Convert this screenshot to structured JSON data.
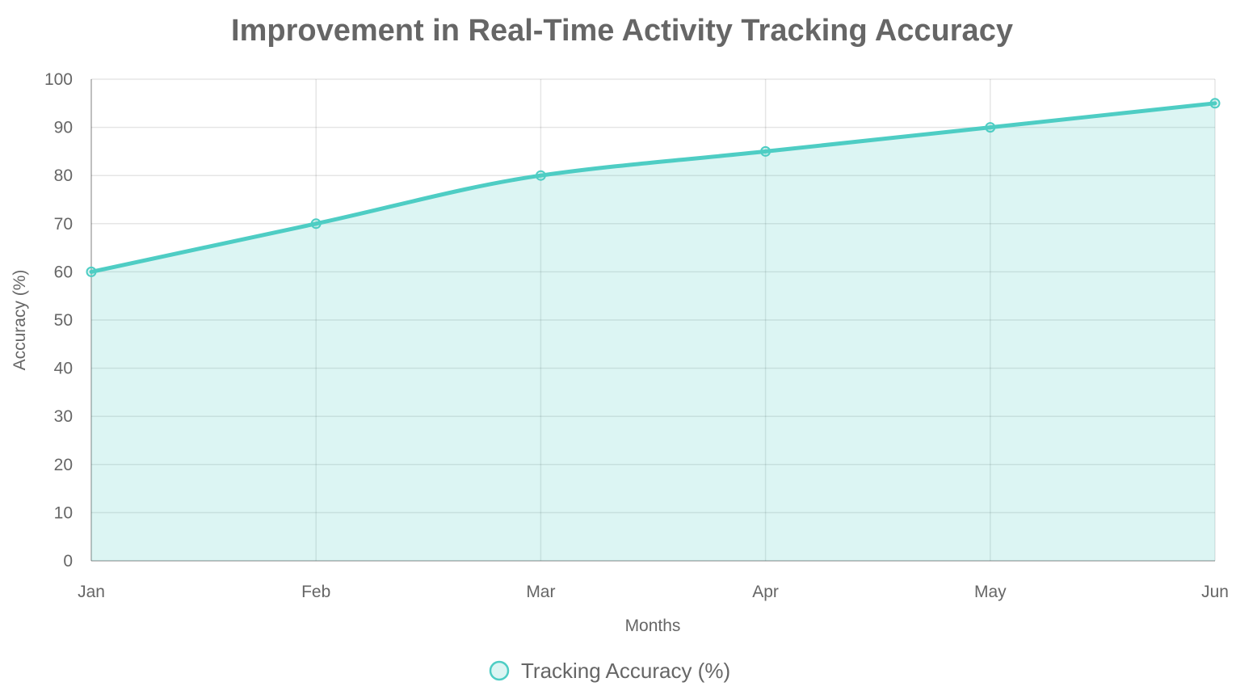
{
  "chart_data": {
    "type": "area",
    "title": "Improvement in Real-Time Activity Tracking Accuracy",
    "xlabel": "Months",
    "ylabel": "Accuracy (%)",
    "categories": [
      "Jan",
      "Feb",
      "Mar",
      "Apr",
      "May",
      "Jun"
    ],
    "series": [
      {
        "name": "Tracking Accuracy (%)",
        "values": [
          60,
          70,
          80,
          85,
          90,
          95
        ],
        "line_color": "#4ecdc4",
        "fill_color": "rgba(78,205,196,0.2)"
      }
    ],
    "ylim": [
      0,
      100
    ],
    "yticks": [
      0,
      10,
      20,
      30,
      40,
      50,
      60,
      70,
      80,
      90,
      100
    ],
    "grid": true,
    "legend_position": "bottom"
  }
}
